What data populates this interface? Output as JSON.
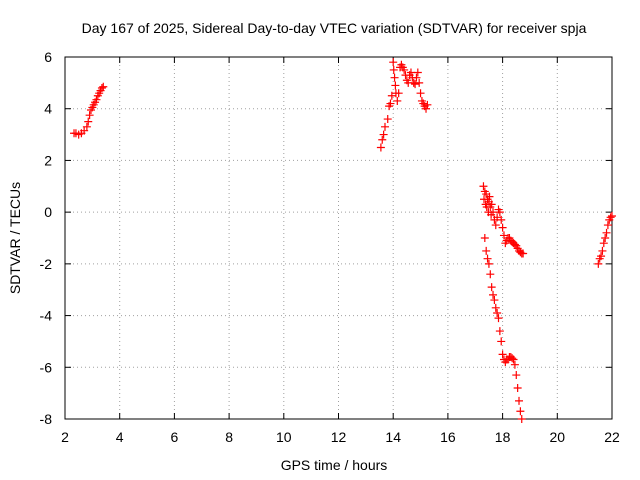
{
  "chart_data": {
    "type": "scatter",
    "title": "Day 167 of 2025, Sidereal Day-to-day VTEC variation (SDTVAR) for receiver spja",
    "xlabel": "GPS time / hours",
    "ylabel": "SDTVAR / TECUs",
    "xlim": [
      2,
      22
    ],
    "ylim": [
      -8,
      6
    ],
    "xticks": [
      "2",
      "4",
      "6",
      "8",
      "10",
      "12",
      "14",
      "16",
      "18",
      "20",
      "22"
    ],
    "yticks": [
      "6",
      "4",
      "2",
      "0",
      "-2",
      "-4",
      "-6",
      "-8"
    ],
    "grid": true,
    "marker": "plus",
    "marker_color": "#ff0000",
    "series": [
      {
        "name": "SDTVAR",
        "x": [
          2.33,
          2.4,
          2.5,
          2.6,
          2.7,
          2.8,
          2.85,
          2.9,
          2.95,
          3.0,
          3.05,
          3.1,
          3.15,
          3.2,
          3.25,
          3.3,
          3.35,
          3.4,
          13.55,
          13.6,
          13.65,
          13.7,
          13.8,
          13.85,
          13.9,
          13.95,
          14.0,
          14.02,
          14.05,
          14.08,
          14.1,
          14.15,
          14.2,
          14.25,
          14.3,
          14.35,
          14.4,
          14.45,
          14.5,
          14.55,
          14.6,
          14.65,
          14.7,
          14.75,
          14.8,
          14.85,
          14.9,
          14.95,
          15.0,
          15.05,
          15.1,
          15.15,
          15.2,
          15.25,
          17.3,
          17.32,
          17.35,
          17.38,
          17.4,
          17.42,
          17.45,
          17.48,
          17.5,
          17.52,
          17.55,
          17.58,
          17.6,
          17.65,
          17.7,
          17.75,
          17.8,
          17.85,
          17.9,
          17.95,
          18.0,
          18.05,
          18.1,
          18.15,
          18.2,
          18.25,
          18.3,
          18.35,
          18.4,
          18.45,
          18.5,
          18.55,
          18.6,
          18.65,
          18.7,
          18.75,
          17.35,
          17.4,
          17.45,
          17.5,
          17.55,
          17.6,
          17.65,
          17.7,
          17.75,
          17.8,
          17.85,
          17.9,
          17.95,
          18.0,
          18.05,
          18.1,
          18.15,
          18.2,
          18.25,
          18.3,
          18.35,
          18.4,
          18.45,
          18.5,
          18.55,
          18.6,
          18.65,
          18.7,
          21.5,
          21.55,
          21.6,
          21.65,
          21.7,
          21.75,
          21.8,
          21.85,
          21.9,
          21.95,
          22.0
        ],
        "y": [
          3.05,
          3.05,
          3.0,
          3.05,
          3.15,
          3.3,
          3.5,
          3.75,
          3.95,
          4.05,
          4.15,
          4.25,
          4.35,
          4.5,
          4.6,
          4.7,
          4.8,
          4.85,
          2.5,
          2.8,
          3.0,
          3.3,
          3.6,
          4.1,
          4.2,
          4.5,
          5.8,
          5.5,
          5.2,
          4.9,
          4.6,
          4.3,
          4.6,
          5.6,
          5.7,
          5.6,
          5.5,
          5.3,
          5.1,
          5.0,
          5.3,
          5.4,
          5.2,
          5.0,
          4.95,
          5.2,
          5.4,
          5.0,
          4.6,
          4.3,
          4.2,
          4.1,
          4.0,
          4.15,
          1.0,
          0.5,
          0.8,
          0.3,
          0.7,
          0.2,
          0.5,
          0.0,
          0.4,
          0.6,
          0.2,
          -0.1,
          0.3,
          0.0,
          -0.3,
          -0.5,
          -0.2,
          0.1,
          0.0,
          -0.3,
          -0.6,
          -0.9,
          -1.2,
          -1.1,
          -1.0,
          -1.0,
          -1.1,
          -1.15,
          -1.2,
          -1.25,
          -1.3,
          -1.4,
          -1.5,
          -1.55,
          -1.6,
          -1.6,
          -1.0,
          -1.5,
          -1.8,
          -2.0,
          -2.4,
          -2.9,
          -3.2,
          -3.4,
          -3.7,
          -3.9,
          -4.1,
          -4.6,
          -5.0,
          -5.5,
          -5.7,
          -5.8,
          -5.7,
          -5.7,
          -5.6,
          -5.6,
          -5.65,
          -5.7,
          -5.9,
          -6.3,
          -6.8,
          -7.3,
          -7.7,
          -8.0,
          -2.0,
          -1.8,
          -1.7,
          -1.5,
          -1.2,
          -1.0,
          -0.8,
          -0.5,
          -0.3,
          -0.2,
          -0.15
        ]
      }
    ]
  }
}
